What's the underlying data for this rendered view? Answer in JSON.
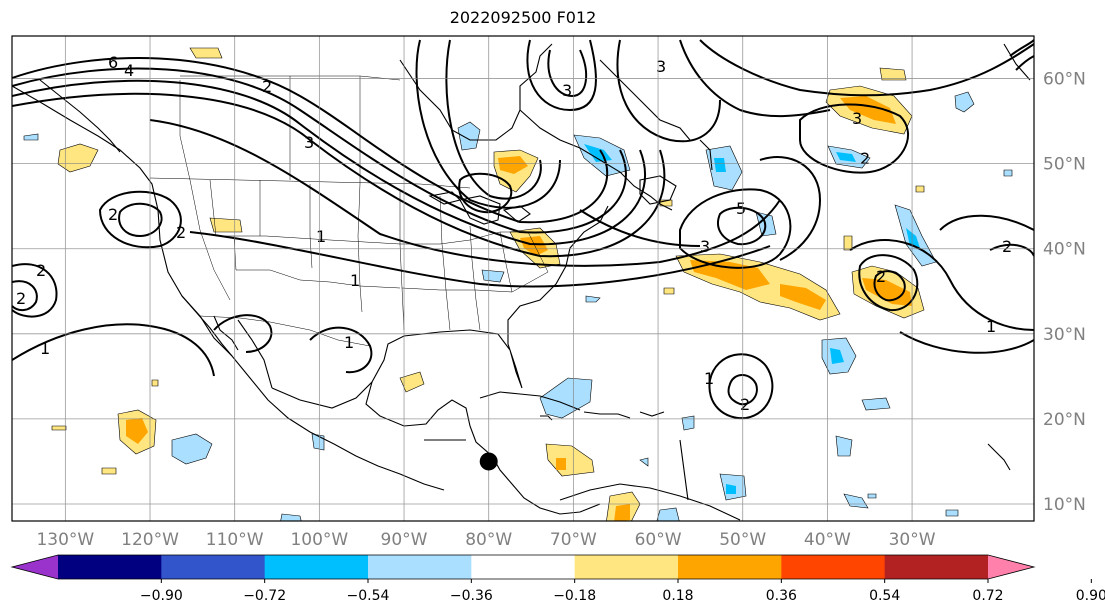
{
  "title": "2022092500 F012",
  "lon_ticks": [
    {
      "value": -130,
      "label": "130°W"
    },
    {
      "value": -120,
      "label": "120°W"
    },
    {
      "value": -110,
      "label": "110°W"
    },
    {
      "value": -100,
      "label": "100°W"
    },
    {
      "value": -90,
      "label": "90°W"
    },
    {
      "value": -80,
      "label": "80°W"
    },
    {
      "value": -70,
      "label": "70°W"
    },
    {
      "value": -60,
      "label": "60°W"
    },
    {
      "value": -50,
      "label": "50°W"
    },
    {
      "value": -40,
      "label": "40°W"
    },
    {
      "value": -30,
      "label": "30°W"
    }
  ],
  "lat_ticks": [
    {
      "value": 10,
      "label": "10°N"
    },
    {
      "value": 20,
      "label": "20°N"
    },
    {
      "value": 30,
      "label": "30°N"
    },
    {
      "value": 40,
      "label": "40°N"
    },
    {
      "value": 50,
      "label": "50°N"
    },
    {
      "value": 60,
      "label": "60°N"
    }
  ],
  "extent": {
    "lon_min": -136.3,
    "lon_max": -15.6,
    "lat_min": 8,
    "lat_max": 65
  },
  "colorbar": {
    "colors": [
      "#9933cc",
      "#000080",
      "#3355cc",
      "#00bfff",
      "#aadfff",
      "#ffffff",
      "#ffe680",
      "#ffa500",
      "#ff4500",
      "#b22222",
      "#ff80aa"
    ],
    "tick_labels": [
      "−0.90",
      "−0.72",
      "−0.54",
      "−0.36",
      "−0.18",
      "0.18",
      "0.36",
      "0.54",
      "0.72",
      "0.90"
    ]
  },
  "contour_labels": [
    "6",
    "4",
    "3",
    "2",
    "1",
    "3",
    "2",
    "5",
    "2",
    "1",
    "3",
    "2",
    "1",
    "2",
    "1",
    "2",
    "3",
    "1",
    "2",
    "2",
    "2",
    "3",
    "1"
  ],
  "storm_marker": {
    "lon": -80,
    "lat": 15
  }
}
